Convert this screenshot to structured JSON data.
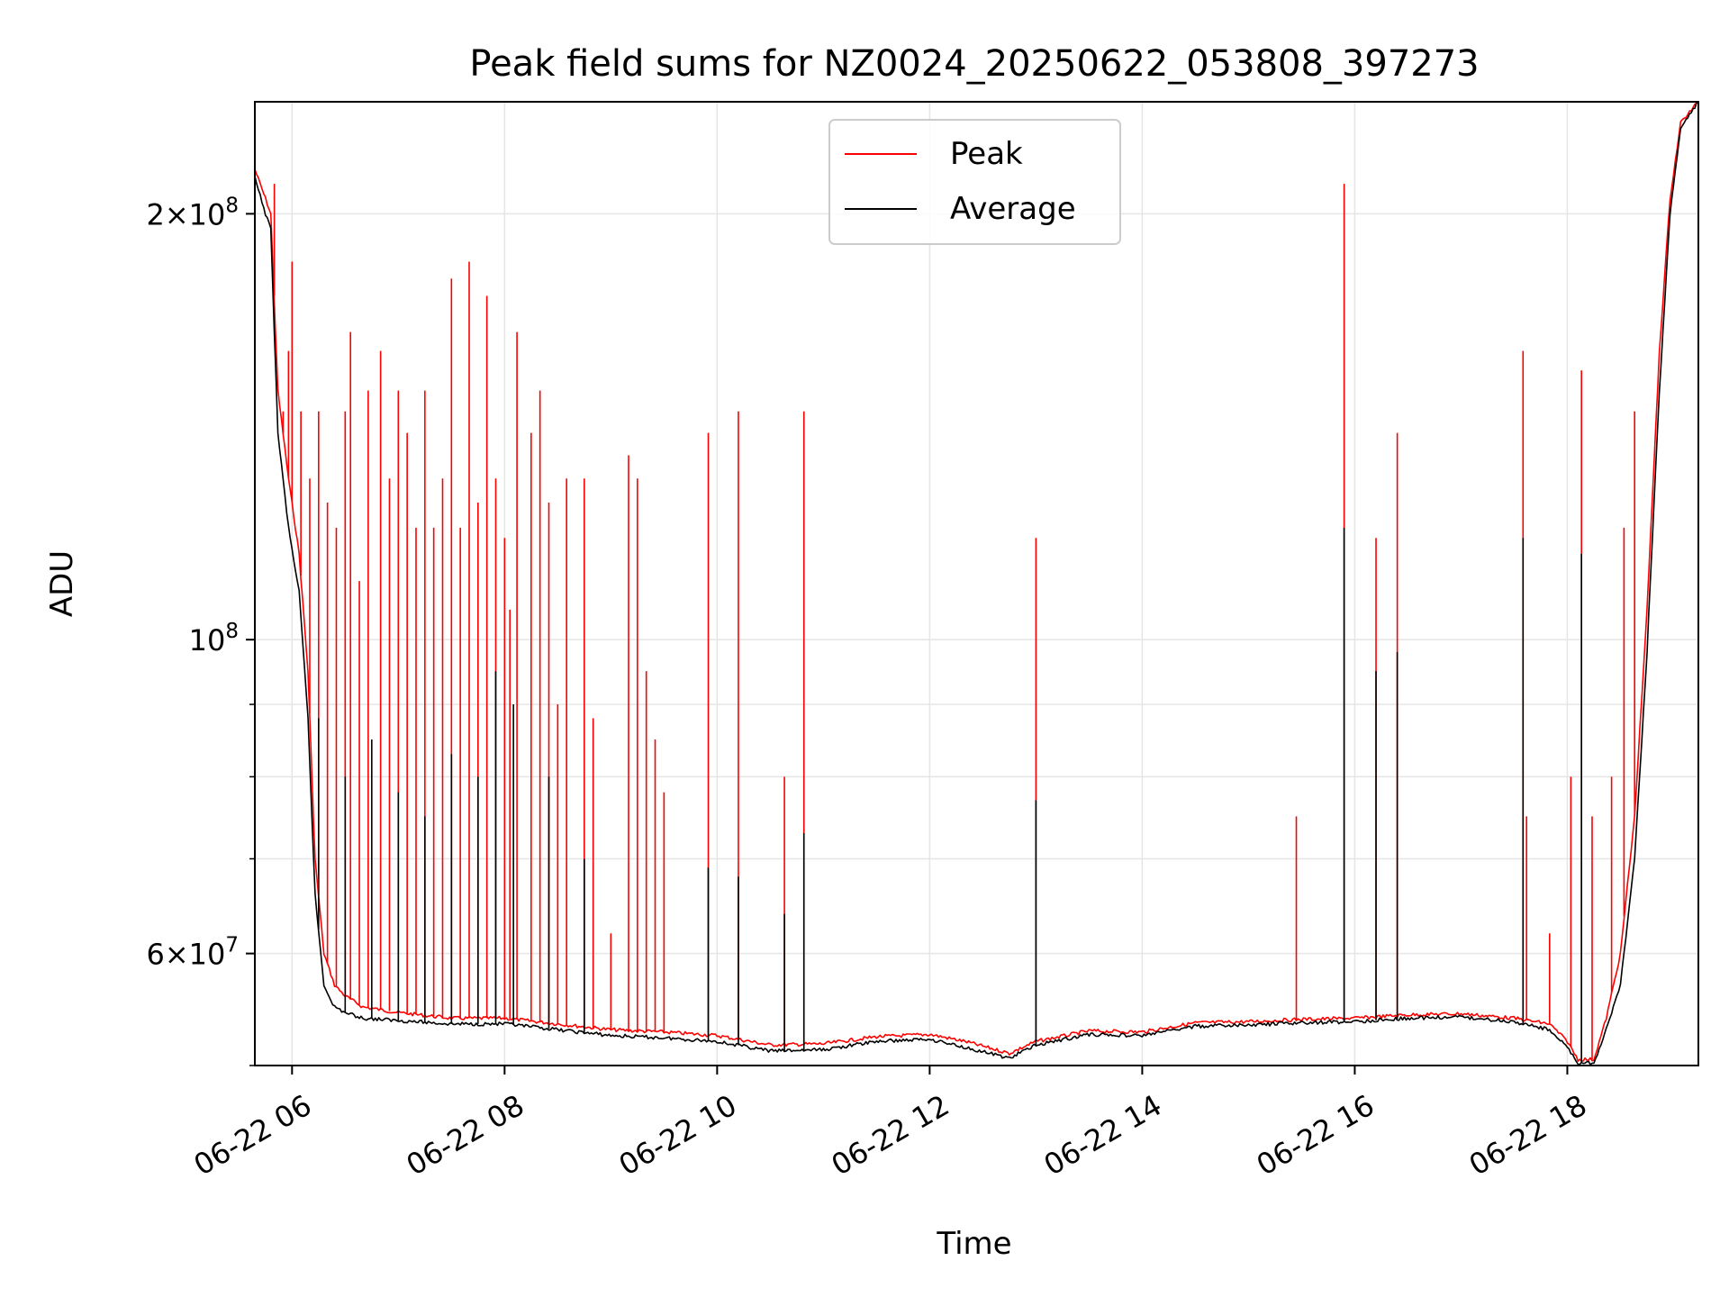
{
  "chart_data": {
    "type": "line",
    "title": "Peak field sums for NZ0024_20250622_053808_397273",
    "xlabel": "Time",
    "ylabel": "ADU",
    "y_scale": "log",
    "ylim": [
      50000000,
      240000000
    ],
    "xlim": [
      "2025-06-22 05:39",
      "2025-06-22 19:14"
    ],
    "grid": true,
    "legend_position": "upper-center",
    "x_ticks": [
      {
        "t": "2025-06-22 06:00",
        "label": "06-22 06"
      },
      {
        "t": "2025-06-22 08:00",
        "label": "06-22 08"
      },
      {
        "t": "2025-06-22 10:00",
        "label": "06-22 10"
      },
      {
        "t": "2025-06-22 12:00",
        "label": "06-22 12"
      },
      {
        "t": "2025-06-22 14:00",
        "label": "06-22 14"
      },
      {
        "t": "2025-06-22 16:00",
        "label": "06-22 16"
      },
      {
        "t": "2025-06-22 18:00",
        "label": "06-22 18"
      }
    ],
    "y_major_ticks": [
      {
        "value": 60000000,
        "mantissa": "6",
        "exponent": "7"
      },
      {
        "value": 100000000,
        "mantissa": "",
        "exponent": "8"
      },
      {
        "value": 200000000,
        "mantissa": "2",
        "exponent": "8"
      }
    ],
    "y_minor_ticks": [
      50000000,
      70000000,
      80000000,
      90000000
    ],
    "series": [
      {
        "name": "Peak",
        "color": "#ff0000",
        "points": [
          [
            "2025-06-22 05:39",
            215000000
          ],
          [
            "2025-06-22 05:45",
            205000000
          ],
          [
            "2025-06-22 05:48",
            200000000
          ],
          [
            "2025-06-22 05:52",
            150000000
          ],
          [
            "2025-06-22 05:58",
            130000000
          ],
          [
            "2025-06-22 06:04",
            115000000
          ],
          [
            "2025-06-22 06:09",
            95000000
          ],
          [
            "2025-06-22 06:13",
            70000000
          ],
          [
            "2025-06-22 06:18",
            60000000
          ],
          [
            "2025-06-22 06:24",
            57000000
          ],
          [
            "2025-06-22 06:30",
            56000000
          ],
          [
            "2025-06-22 06:40",
            55000000
          ],
          [
            "2025-06-22 07:00",
            54500000
          ],
          [
            "2025-06-22 07:30",
            54000000
          ],
          [
            "2025-06-22 08:00",
            54000000
          ],
          [
            "2025-06-22 08:30",
            53500000
          ],
          [
            "2025-06-22 09:00",
            53000000
          ],
          [
            "2025-06-22 09:30",
            52800000
          ],
          [
            "2025-06-22 10:00",
            52500000
          ],
          [
            "2025-06-22 10:30",
            51700000
          ],
          [
            "2025-06-22 11:00",
            51800000
          ],
          [
            "2025-06-22 11:30",
            52400000
          ],
          [
            "2025-06-22 12:00",
            52600000
          ],
          [
            "2025-06-22 12:20",
            52000000
          ],
          [
            "2025-06-22 12:45",
            51000000
          ],
          [
            "2025-06-22 13:00",
            52000000
          ],
          [
            "2025-06-22 13:30",
            52900000
          ],
          [
            "2025-06-22 14:00",
            52800000
          ],
          [
            "2025-06-22 14:30",
            53600000
          ],
          [
            "2025-06-22 15:00",
            53700000
          ],
          [
            "2025-06-22 15:30",
            53900000
          ],
          [
            "2025-06-22 16:00",
            54000000
          ],
          [
            "2025-06-22 16:30",
            54300000
          ],
          [
            "2025-06-22 17:00",
            54400000
          ],
          [
            "2025-06-22 17:30",
            54000000
          ],
          [
            "2025-06-22 17:50",
            53500000
          ],
          [
            "2025-06-22 18:00",
            52000000
          ],
          [
            "2025-06-22 18:06",
            50500000
          ],
          [
            "2025-06-22 18:15",
            50500000
          ],
          [
            "2025-06-22 18:22",
            54000000
          ],
          [
            "2025-06-22 18:30",
            60000000
          ],
          [
            "2025-06-22 18:38",
            75000000
          ],
          [
            "2025-06-22 18:45",
            105000000
          ],
          [
            "2025-06-22 18:52",
            160000000
          ],
          [
            "2025-06-22 18:58",
            205000000
          ],
          [
            "2025-06-22 19:04",
            232000000
          ],
          [
            "2025-06-22 19:14",
            240000000
          ]
        ],
        "spikes": [
          [
            "2025-06-22 05:50",
            210000000
          ],
          [
            "2025-06-22 05:55",
            145000000
          ],
          [
            "2025-06-22 05:58",
            160000000
          ],
          [
            "2025-06-22 06:00",
            185000000
          ],
          [
            "2025-06-22 06:05",
            145000000
          ],
          [
            "2025-06-22 06:10",
            130000000
          ],
          [
            "2025-06-22 06:15",
            145000000
          ],
          [
            "2025-06-22 06:20",
            125000000
          ],
          [
            "2025-06-22 06:25",
            120000000
          ],
          [
            "2025-06-22 06:30",
            145000000
          ],
          [
            "2025-06-22 06:33",
            165000000
          ],
          [
            "2025-06-22 06:38",
            110000000
          ],
          [
            "2025-06-22 06:43",
            150000000
          ],
          [
            "2025-06-22 06:50",
            160000000
          ],
          [
            "2025-06-22 06:55",
            130000000
          ],
          [
            "2025-06-22 07:00",
            150000000
          ],
          [
            "2025-06-22 07:05",
            140000000
          ],
          [
            "2025-06-22 07:10",
            120000000
          ],
          [
            "2025-06-22 07:15",
            150000000
          ],
          [
            "2025-06-22 07:20",
            120000000
          ],
          [
            "2025-06-22 07:25",
            130000000
          ],
          [
            "2025-06-22 07:30",
            180000000
          ],
          [
            "2025-06-22 07:35",
            120000000
          ],
          [
            "2025-06-22 07:40",
            185000000
          ],
          [
            "2025-06-22 07:45",
            125000000
          ],
          [
            "2025-06-22 07:50",
            175000000
          ],
          [
            "2025-06-22 07:55",
            130000000
          ],
          [
            "2025-06-22 08:00",
            118000000
          ],
          [
            "2025-06-22 08:03",
            105000000
          ],
          [
            "2025-06-22 08:07",
            165000000
          ],
          [
            "2025-06-22 08:15",
            140000000
          ],
          [
            "2025-06-22 08:20",
            150000000
          ],
          [
            "2025-06-22 08:25",
            125000000
          ],
          [
            "2025-06-22 08:30",
            90000000
          ],
          [
            "2025-06-22 08:35",
            130000000
          ],
          [
            "2025-06-22 08:45",
            130000000
          ],
          [
            "2025-06-22 08:50",
            88000000
          ],
          [
            "2025-06-22 09:00",
            62000000
          ],
          [
            "2025-06-22 09:10",
            135000000
          ],
          [
            "2025-06-22 09:15",
            130000000
          ],
          [
            "2025-06-22 09:20",
            95000000
          ],
          [
            "2025-06-22 09:25",
            85000000
          ],
          [
            "2025-06-22 09:30",
            78000000
          ],
          [
            "2025-06-22 09:55",
            140000000
          ],
          [
            "2025-06-22 10:12",
            145000000
          ],
          [
            "2025-06-22 10:38",
            80000000
          ],
          [
            "2025-06-22 10:49",
            145000000
          ],
          [
            "2025-06-22 13:00",
            118000000
          ],
          [
            "2025-06-22 15:27",
            75000000
          ],
          [
            "2025-06-22 15:54",
            210000000
          ],
          [
            "2025-06-22 16:12",
            118000000
          ],
          [
            "2025-06-22 16:24",
            140000000
          ],
          [
            "2025-06-22 17:35",
            160000000
          ],
          [
            "2025-06-22 17:37",
            75000000
          ],
          [
            "2025-06-22 17:50",
            62000000
          ],
          [
            "2025-06-22 18:02",
            80000000
          ],
          [
            "2025-06-22 18:08",
            155000000
          ],
          [
            "2025-06-22 18:14",
            75000000
          ],
          [
            "2025-06-22 18:25",
            80000000
          ],
          [
            "2025-06-22 18:32",
            120000000
          ],
          [
            "2025-06-22 18:38",
            145000000
          ]
        ]
      },
      {
        "name": "Average",
        "color": "#000000",
        "points": [
          [
            "2025-06-22 05:39",
            212000000
          ],
          [
            "2025-06-22 05:45",
            200000000
          ],
          [
            "2025-06-22 05:48",
            195000000
          ],
          [
            "2025-06-22 05:52",
            140000000
          ],
          [
            "2025-06-22 05:58",
            120000000
          ],
          [
            "2025-06-22 06:04",
            108000000
          ],
          [
            "2025-06-22 06:09",
            88000000
          ],
          [
            "2025-06-22 06:13",
            66000000
          ],
          [
            "2025-06-22 06:18",
            57000000
          ],
          [
            "2025-06-22 06:24",
            55000000
          ],
          [
            "2025-06-22 06:30",
            54500000
          ],
          [
            "2025-06-22 06:40",
            54000000
          ],
          [
            "2025-06-22 07:00",
            53800000
          ],
          [
            "2025-06-22 07:30",
            53500000
          ],
          [
            "2025-06-22 08:00",
            53500000
          ],
          [
            "2025-06-22 08:30",
            53000000
          ],
          [
            "2025-06-22 09:00",
            52500000
          ],
          [
            "2025-06-22 09:30",
            52300000
          ],
          [
            "2025-06-22 10:00",
            52000000
          ],
          [
            "2025-06-22 10:30",
            51200000
          ],
          [
            "2025-06-22 11:00",
            51300000
          ],
          [
            "2025-06-22 11:30",
            52000000
          ],
          [
            "2025-06-22 12:00",
            52200000
          ],
          [
            "2025-06-22 12:20",
            51500000
          ],
          [
            "2025-06-22 12:45",
            50600000
          ],
          [
            "2025-06-22 13:00",
            51700000
          ],
          [
            "2025-06-22 13:30",
            52600000
          ],
          [
            "2025-06-22 14:00",
            52500000
          ],
          [
            "2025-06-22 14:30",
            53300000
          ],
          [
            "2025-06-22 15:00",
            53400000
          ],
          [
            "2025-06-22 15:30",
            53600000
          ],
          [
            "2025-06-22 16:00",
            53700000
          ],
          [
            "2025-06-22 16:30",
            54000000
          ],
          [
            "2025-06-22 17:00",
            54100000
          ],
          [
            "2025-06-22 17:30",
            53700000
          ],
          [
            "2025-06-22 17:50",
            53000000
          ],
          [
            "2025-06-22 18:00",
            51500000
          ],
          [
            "2025-06-22 18:06",
            50200000
          ],
          [
            "2025-06-22 18:15",
            50200000
          ],
          [
            "2025-06-22 18:22",
            53000000
          ],
          [
            "2025-06-22 18:30",
            57000000
          ],
          [
            "2025-06-22 18:38",
            70000000
          ],
          [
            "2025-06-22 18:45",
            98000000
          ],
          [
            "2025-06-22 18:52",
            150000000
          ],
          [
            "2025-06-22 18:58",
            200000000
          ],
          [
            "2025-06-22 19:04",
            230000000
          ],
          [
            "2025-06-22 19:14",
            240000000
          ]
        ],
        "spikes": [
          [
            "2025-06-22 06:15",
            88000000
          ],
          [
            "2025-06-22 06:30",
            80000000
          ],
          [
            "2025-06-22 06:45",
            85000000
          ],
          [
            "2025-06-22 07:00",
            78000000
          ],
          [
            "2025-06-22 07:15",
            75000000
          ],
          [
            "2025-06-22 07:30",
            83000000
          ],
          [
            "2025-06-22 07:45",
            80000000
          ],
          [
            "2025-06-22 07:55",
            95000000
          ],
          [
            "2025-06-22 08:05",
            90000000
          ],
          [
            "2025-06-22 08:25",
            80000000
          ],
          [
            "2025-06-22 08:45",
            70000000
          ],
          [
            "2025-06-22 09:55",
            69000000
          ],
          [
            "2025-06-22 10:12",
            68000000
          ],
          [
            "2025-06-22 10:38",
            64000000
          ],
          [
            "2025-06-22 10:49",
            73000000
          ],
          [
            "2025-06-22 13:00",
            77000000
          ],
          [
            "2025-06-22 15:54",
            120000000
          ],
          [
            "2025-06-22 16:12",
            95000000
          ],
          [
            "2025-06-22 16:24",
            98000000
          ],
          [
            "2025-06-22 17:35",
            118000000
          ],
          [
            "2025-06-22 18:08",
            115000000
          ]
        ]
      }
    ]
  }
}
